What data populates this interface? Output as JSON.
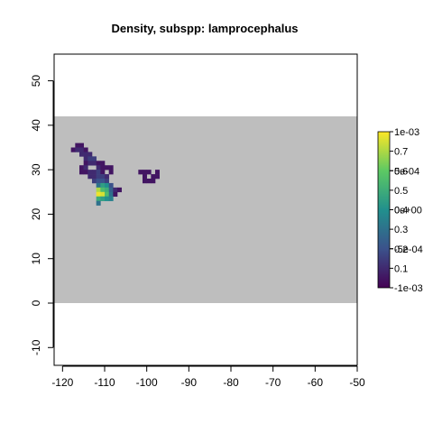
{
  "chart_data": {
    "type": "heatmap",
    "title": "Density, subspp: lamprocephalus",
    "xlabel": "",
    "ylabel": "",
    "xlim": [
      -122,
      -50
    ],
    "ylim": [
      -14,
      56
    ],
    "xticks": [
      "-120",
      "-110",
      "-100",
      "-90",
      "-80",
      "-70",
      "-60",
      "-50"
    ],
    "xtick_values": [
      -120,
      -110,
      -100,
      -90,
      -80,
      -70,
      -60,
      -50
    ],
    "yticks": [
      "-10",
      "0",
      "10",
      "20",
      "30",
      "40",
      "50"
    ],
    "ytick_values": [
      -10,
      0,
      10,
      20,
      30,
      40,
      50
    ],
    "background_region": {
      "x": [
        -122,
        -50
      ],
      "y": [
        0,
        42
      ],
      "color": "#bebebe"
    },
    "cell_size": 1,
    "colorscale": [
      "#440154",
      "#3b528b",
      "#21908d",
      "#5dc963",
      "#fde725"
    ],
    "colorbar": {
      "range": [
        0,
        0.8
      ],
      "labels_right": [
        "0.7",
        "0.6",
        "0.5",
        "0.4",
        "0.3",
        "0.2",
        "0.1"
      ],
      "labels_right_values": [
        0.7,
        0.6,
        0.5,
        0.4,
        0.3,
        0.2,
        0.1
      ],
      "labels_overlay": [
        "1e-03",
        "5e-04",
        "0e+00",
        "-5e-04",
        "-1e-03"
      ],
      "labels_overlay_values": [
        0.8,
        0.6,
        0.4,
        0.2,
        0.0
      ]
    },
    "cells": [
      {
        "x": -117,
        "y": 35,
        "v": 0.05
      },
      {
        "x": -116,
        "y": 35,
        "v": 0.05
      },
      {
        "x": -118,
        "y": 34,
        "v": 0.05
      },
      {
        "x": -117,
        "y": 34,
        "v": 0.1
      },
      {
        "x": -116,
        "y": 34,
        "v": 0.1
      },
      {
        "x": -115,
        "y": 34,
        "v": 0.05
      },
      {
        "x": -116,
        "y": 33,
        "v": 0.1
      },
      {
        "x": -115,
        "y": 33,
        "v": 0.1
      },
      {
        "x": -114,
        "y": 33,
        "v": 0.1
      },
      {
        "x": -115,
        "y": 32,
        "v": 0.1
      },
      {
        "x": -114,
        "y": 32,
        "v": 0.15
      },
      {
        "x": -113,
        "y": 32,
        "v": 0.15
      },
      {
        "x": -115,
        "y": 31,
        "v": 0.05
      },
      {
        "x": -114,
        "y": 31,
        "v": 0.1
      },
      {
        "x": -113,
        "y": 31,
        "v": 0.1
      },
      {
        "x": -112,
        "y": 31,
        "v": 0.05
      },
      {
        "x": -111,
        "y": 31,
        "v": 0.05
      },
      {
        "x": -116,
        "y": 30,
        "v": 0.05
      },
      {
        "x": -115,
        "y": 30,
        "v": 0.1
      },
      {
        "x": -112,
        "y": 30,
        "v": 0.1
      },
      {
        "x": -111,
        "y": 30,
        "v": 0.05
      },
      {
        "x": -110,
        "y": 30,
        "v": 0.05
      },
      {
        "x": -109,
        "y": 30,
        "v": 0.05
      },
      {
        "x": -116,
        "y": 29,
        "v": 0.05
      },
      {
        "x": -115,
        "y": 29,
        "v": 0.05
      },
      {
        "x": -114,
        "y": 29,
        "v": 0.1
      },
      {
        "x": -113,
        "y": 29,
        "v": 0.1
      },
      {
        "x": -112,
        "y": 29,
        "v": 0.15
      },
      {
        "x": -111,
        "y": 29,
        "v": 0.05
      },
      {
        "x": -109,
        "y": 29,
        "v": 0.05
      },
      {
        "x": -114,
        "y": 28,
        "v": 0.1
      },
      {
        "x": -113,
        "y": 28,
        "v": 0.1
      },
      {
        "x": -112,
        "y": 28,
        "v": 0.15
      },
      {
        "x": -111,
        "y": 28,
        "v": 0.15
      },
      {
        "x": -110,
        "y": 28,
        "v": 0.1
      },
      {
        "x": -113,
        "y": 27,
        "v": 0.15
      },
      {
        "x": -112,
        "y": 27,
        "v": 0.2
      },
      {
        "x": -111,
        "y": 27,
        "v": 0.2
      },
      {
        "x": -110,
        "y": 27,
        "v": 0.15
      },
      {
        "x": -112,
        "y": 26,
        "v": 0.3
      },
      {
        "x": -111,
        "y": 26,
        "v": 0.45
      },
      {
        "x": -110,
        "y": 26,
        "v": 0.4
      },
      {
        "x": -109,
        "y": 26,
        "v": 0.2
      },
      {
        "x": -112,
        "y": 25,
        "v": 0.7
      },
      {
        "x": -111,
        "y": 25,
        "v": 0.55
      },
      {
        "x": -110,
        "y": 25,
        "v": 0.5
      },
      {
        "x": -109,
        "y": 25,
        "v": 0.25
      },
      {
        "x": -108,
        "y": 25,
        "v": 0.1
      },
      {
        "x": -107,
        "y": 25,
        "v": 0.05
      },
      {
        "x": -112,
        "y": 24,
        "v": 0.78
      },
      {
        "x": -111,
        "y": 24,
        "v": 0.75
      },
      {
        "x": -110,
        "y": 24,
        "v": 0.55
      },
      {
        "x": -109,
        "y": 24,
        "v": 0.3
      },
      {
        "x": -108,
        "y": 24,
        "v": 0.05
      },
      {
        "x": -112,
        "y": 23,
        "v": 0.5
      },
      {
        "x": -111,
        "y": 23,
        "v": 0.45
      },
      {
        "x": -110,
        "y": 23,
        "v": 0.4
      },
      {
        "x": -109,
        "y": 23,
        "v": 0.35
      },
      {
        "x": -112,
        "y": 22,
        "v": 0.3
      },
      {
        "x": -102,
        "y": 29,
        "v": 0.05
      },
      {
        "x": -101,
        "y": 29,
        "v": 0.05
      },
      {
        "x": -100,
        "y": 29,
        "v": 0.05
      },
      {
        "x": -98,
        "y": 29,
        "v": 0.05
      },
      {
        "x": -101,
        "y": 28,
        "v": 0.05
      },
      {
        "x": -99,
        "y": 28,
        "v": 0.05
      },
      {
        "x": -98,
        "y": 28,
        "v": 0.05
      },
      {
        "x": -101,
        "y": 27,
        "v": 0.05
      },
      {
        "x": -100,
        "y": 27,
        "v": 0.05
      },
      {
        "x": -99,
        "y": 27,
        "v": 0.05
      }
    ]
  }
}
